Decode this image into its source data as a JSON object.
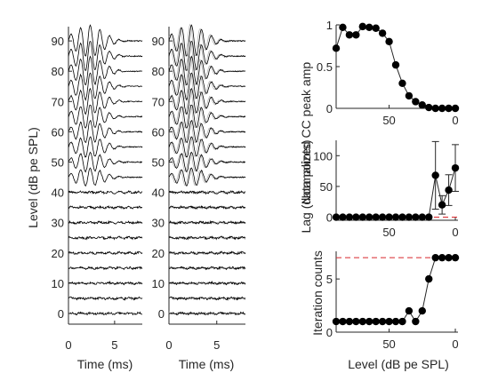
{
  "colors": {
    "axis": "#262626",
    "trace_dark": "#000000",
    "trace_grey": "#b8b8b8",
    "marker": "#000000",
    "ref_line": "#d7262b"
  },
  "chart_data": [
    {
      "type": "line",
      "panel": "waveforms-left",
      "ylabel": "Level (dB pe SPL)",
      "xlabel": "Time (ms)",
      "xlim": [
        0,
        8
      ],
      "xticks": [
        "0",
        "5"
      ],
      "yticks": [
        "0",
        "10",
        "20",
        "30",
        "40",
        "50",
        "60",
        "70",
        "80",
        "90"
      ],
      "levels": [
        90,
        85,
        80,
        75,
        70,
        65,
        60,
        55,
        50,
        45,
        40,
        35,
        30,
        25,
        20,
        15,
        10,
        5,
        0
      ]
    },
    {
      "type": "line",
      "panel": "waveforms-right",
      "xlabel": "Time (ms)",
      "xlim": [
        0,
        8
      ],
      "xticks": [
        "0",
        "5"
      ],
      "yticks": [
        "0",
        "10",
        "20",
        "30",
        "40",
        "50",
        "60",
        "70",
        "80",
        "90"
      ],
      "levels": [
        90,
        85,
        80,
        75,
        70,
        65,
        60,
        55,
        50,
        45,
        40,
        35,
        30,
        25,
        20,
        15,
        10,
        5,
        0
      ]
    },
    {
      "type": "scatter",
      "panel": "cc-peak",
      "ylabel": "Normalized CC peak amp",
      "xlim": [
        90,
        -2
      ],
      "ylim": [
        0,
        1
      ],
      "xticks": [
        "50",
        "0"
      ],
      "yticks": [
        "0",
        "0.5",
        "1"
      ],
      "x": [
        90,
        85,
        80,
        75,
        70,
        65,
        60,
        55,
        50,
        45,
        40,
        35,
        30,
        25,
        20,
        15,
        10,
        5,
        0
      ],
      "y": [
        0.72,
        0.97,
        0.88,
        0.88,
        0.98,
        0.97,
        0.96,
        0.9,
        0.8,
        0.52,
        0.3,
        0.15,
        0.08,
        0.04,
        0.01,
        0.0,
        0.0,
        0.0,
        0.0
      ]
    },
    {
      "type": "scatter",
      "panel": "lag",
      "ylabel": "Lag (data points)",
      "xlim": [
        90,
        -2
      ],
      "ylim": [
        -5,
        125
      ],
      "xticks": [
        "50",
        "0"
      ],
      "yticks": [
        "0",
        "50",
        "100"
      ],
      "x": [
        90,
        85,
        80,
        75,
        70,
        65,
        60,
        55,
        50,
        45,
        40,
        35,
        30,
        25,
        20,
        15,
        10,
        5,
        0
      ],
      "y": [
        0,
        0,
        0,
        0,
        0,
        0,
        0,
        0,
        0,
        0,
        0,
        0,
        0,
        0,
        0,
        68,
        20,
        44,
        80
      ],
      "err": [
        0,
        0,
        0,
        0,
        0,
        0,
        0,
        0,
        0,
        0,
        0,
        0,
        0,
        0,
        0,
        55,
        15,
        25,
        38
      ],
      "reference_y": 0
    },
    {
      "type": "scatter",
      "panel": "iterations",
      "ylabel": "Iteration counts",
      "xlabel": "Level (dB pe SPL)",
      "xlim": [
        90,
        -2
      ],
      "ylim": [
        0,
        7.6
      ],
      "xticks": [
        "50",
        "0"
      ],
      "yticks": [
        "0",
        "5"
      ],
      "x": [
        90,
        85,
        80,
        75,
        70,
        65,
        60,
        55,
        50,
        45,
        40,
        35,
        30,
        25,
        20,
        15,
        10,
        5,
        0
      ],
      "y": [
        1,
        1,
        1,
        1,
        1,
        1,
        1,
        1,
        1,
        1,
        1,
        2,
        1,
        2,
        5,
        7,
        7,
        7,
        7
      ],
      "reference_y": 7
    }
  ]
}
